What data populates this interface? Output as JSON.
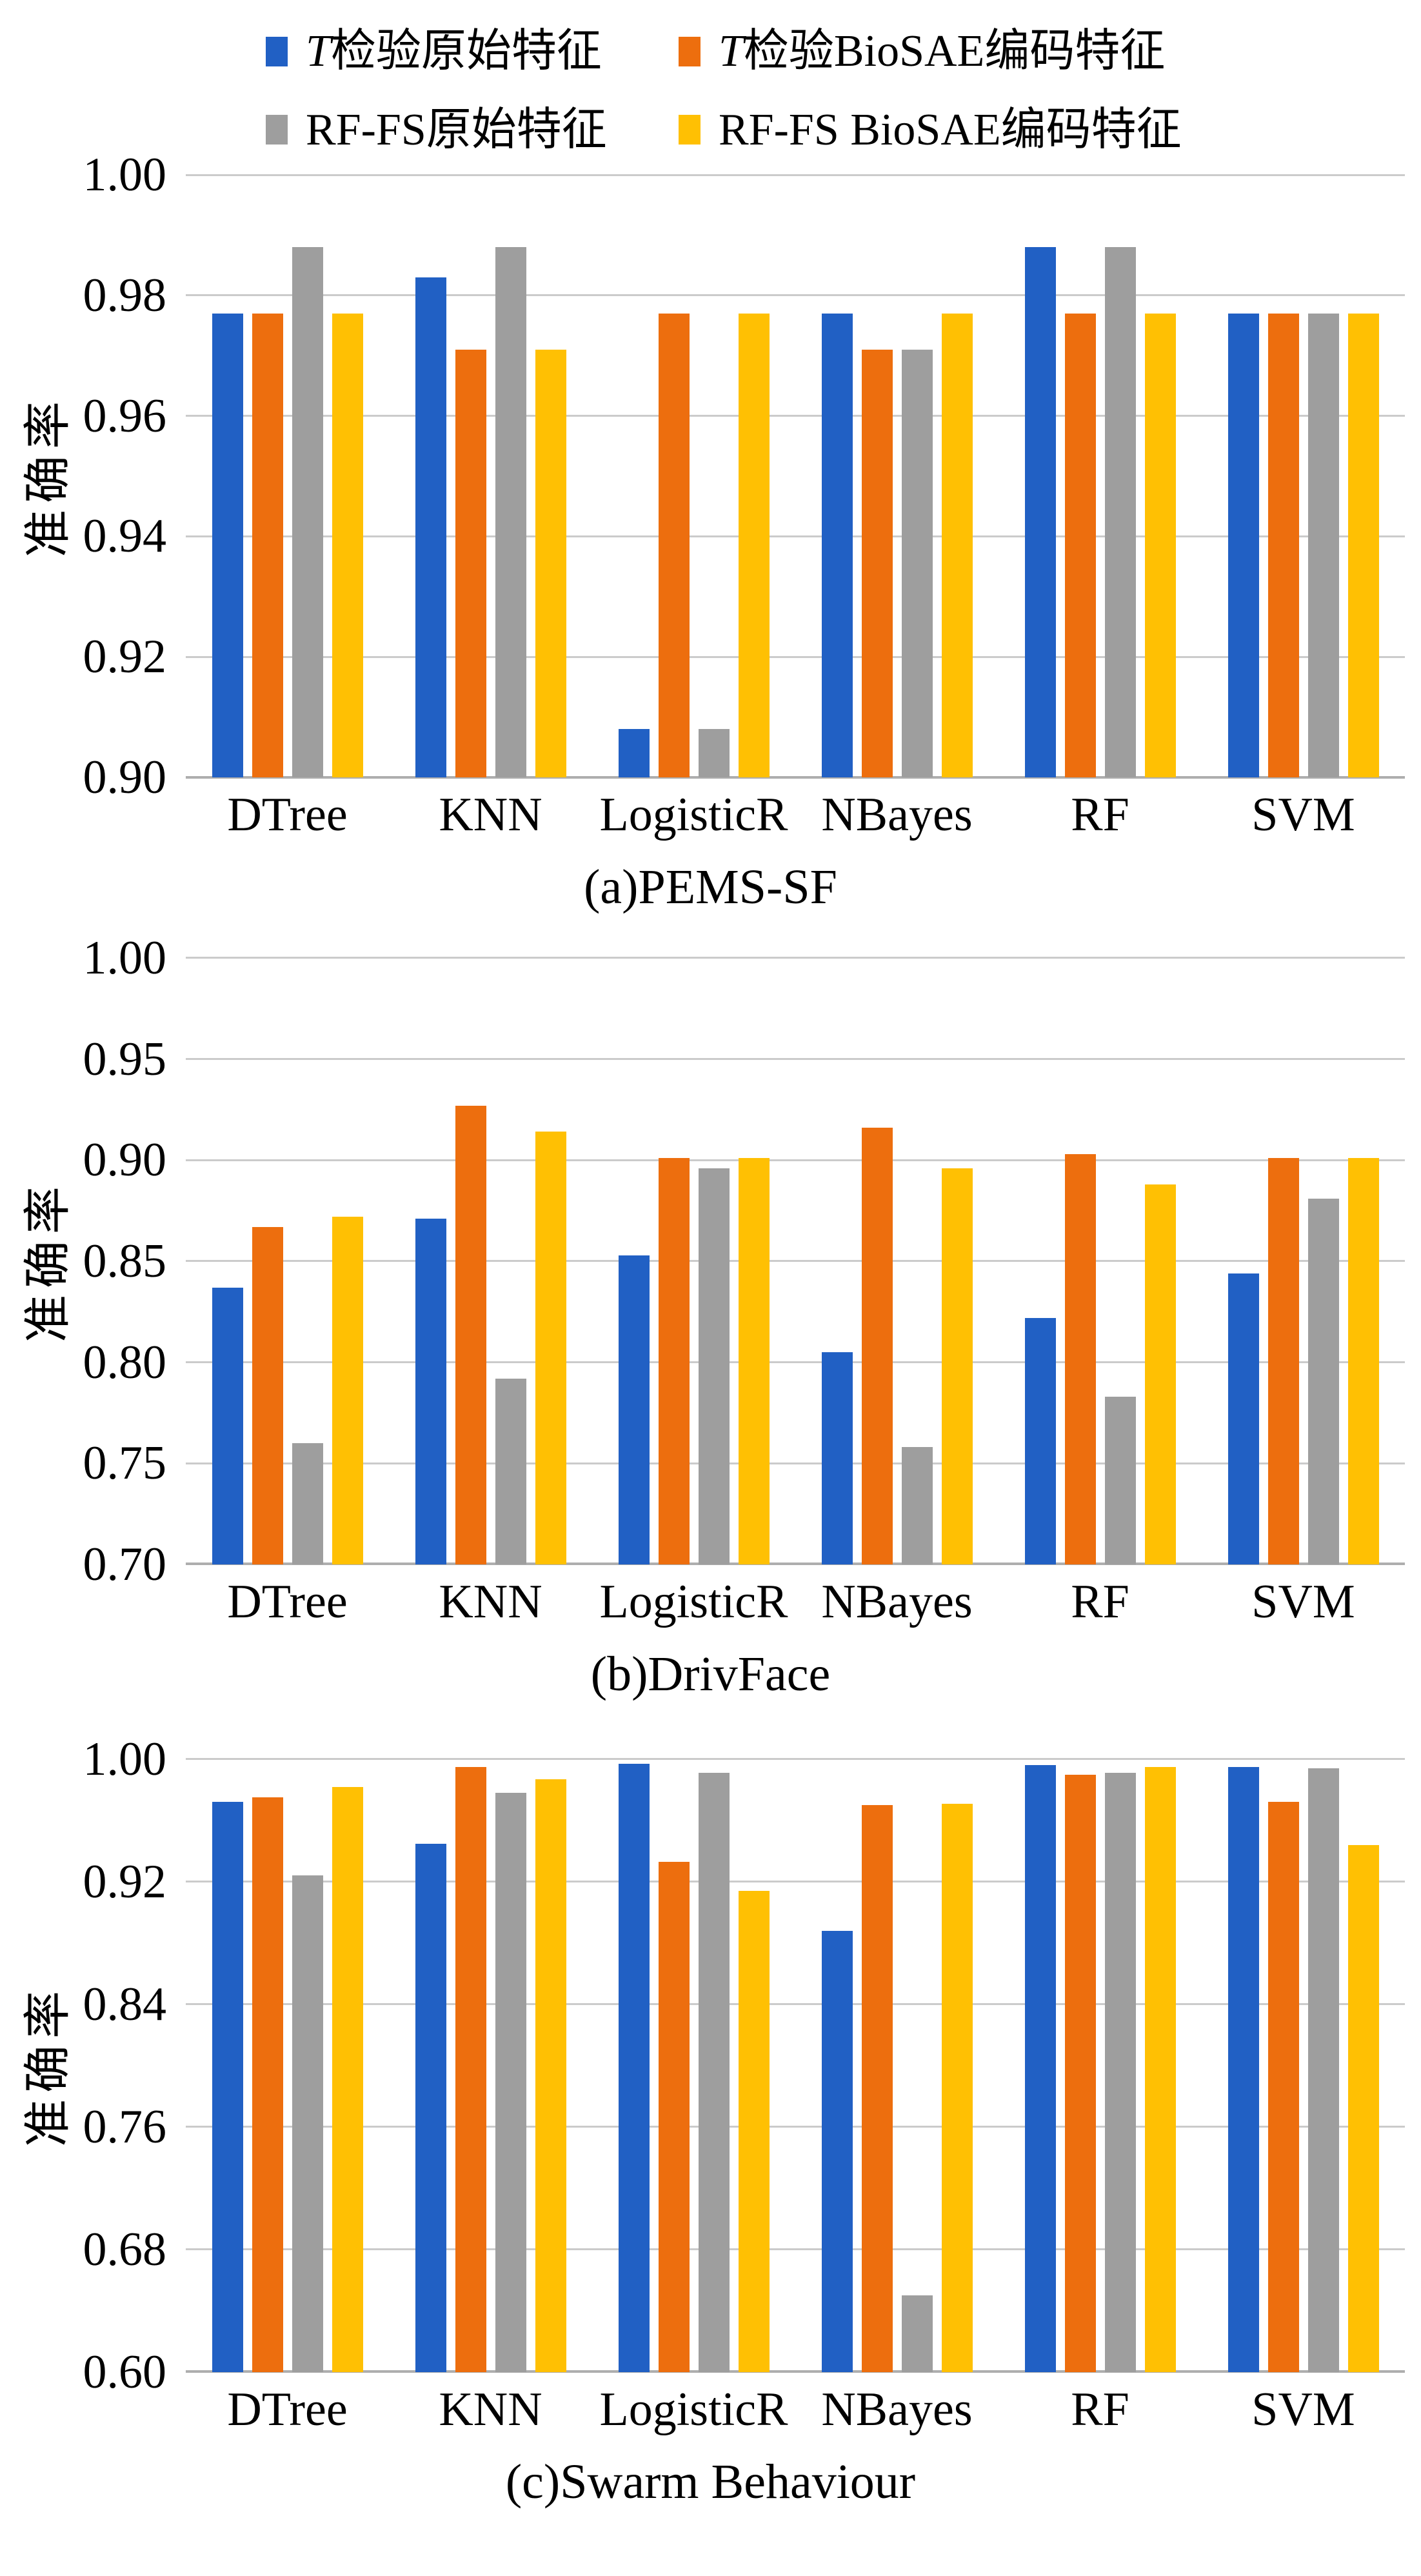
{
  "legend": {
    "items": [
      {
        "prefix": "T",
        "label": "检验原始特征",
        "color": "#2160C4"
      },
      {
        "prefix": "T",
        "label": "检验BioSAE编码特征",
        "color": "#ED6E0E"
      },
      {
        "prefix": "",
        "label": "RF-FS原始特征",
        "color": "#9E9E9E"
      },
      {
        "prefix": "",
        "label": "RF-FS BioSAE编码特征",
        "color": "#FFC003"
      }
    ]
  },
  "chart_data": [
    {
      "type": "bar",
      "title": "(a)PEMS-SF",
      "ylabel": "准确率",
      "xlabel": "",
      "grid": true,
      "legend_position": "top-shared",
      "categories": [
        "DTree",
        "KNN",
        "LogisticR",
        "NBayes",
        "RF",
        "SVM"
      ],
      "ylim": [
        0.9,
        1.0
      ],
      "yticks": [
        {
          "value": 0.9,
          "label": "0.90"
        },
        {
          "value": 0.92,
          "label": "0.92"
        },
        {
          "value": 0.94,
          "label": "0.94"
        },
        {
          "value": 0.96,
          "label": "0.96"
        },
        {
          "value": 0.98,
          "label": "0.98"
        },
        {
          "value": 1.0,
          "label": "1.00"
        }
      ],
      "series": [
        {
          "name": "T检验原始特征",
          "color": "#2160C4",
          "values": [
            0.977,
            0.983,
            0.908,
            0.977,
            0.988,
            0.977
          ]
        },
        {
          "name": "T检验BioSAE编码特征",
          "color": "#ED6E0E",
          "values": [
            0.977,
            0.971,
            0.977,
            0.971,
            0.977,
            0.977
          ]
        },
        {
          "name": "RF-FS原始特征",
          "color": "#9E9E9E",
          "values": [
            0.988,
            0.988,
            0.908,
            0.971,
            0.988,
            0.977
          ]
        },
        {
          "name": "RF-FS BioSAE编码特征",
          "color": "#FFC003",
          "values": [
            0.977,
            0.971,
            0.977,
            0.977,
            0.977,
            0.977
          ]
        }
      ]
    },
    {
      "type": "bar",
      "title": "(b)DrivFace",
      "ylabel": "准确率",
      "xlabel": "",
      "grid": true,
      "legend_position": "top-shared",
      "categories": [
        "DTree",
        "KNN",
        "LogisticR",
        "NBayes",
        "RF",
        "SVM"
      ],
      "ylim": [
        0.7,
        1.0
      ],
      "yticks": [
        {
          "value": 0.7,
          "label": "0.70"
        },
        {
          "value": 0.75,
          "label": "0.75"
        },
        {
          "value": 0.8,
          "label": "0.80"
        },
        {
          "value": 0.85,
          "label": "0.85"
        },
        {
          "value": 0.9,
          "label": "0.90"
        },
        {
          "value": 0.95,
          "label": "0.95"
        },
        {
          "value": 1.0,
          "label": "1.00"
        }
      ],
      "series": [
        {
          "name": "T检验原始特征",
          "color": "#2160C4",
          "values": [
            0.837,
            0.871,
            0.853,
            0.805,
            0.822,
            0.844
          ]
        },
        {
          "name": "T检验BioSAE编码特征",
          "color": "#ED6E0E",
          "values": [
            0.867,
            0.927,
            0.901,
            0.916,
            0.903,
            0.901
          ]
        },
        {
          "name": "RF-FS原始特征",
          "color": "#9E9E9E",
          "values": [
            0.76,
            0.792,
            0.896,
            0.758,
            0.783,
            0.881
          ]
        },
        {
          "name": "RF-FS BioSAE编码特征",
          "color": "#FFC003",
          "values": [
            0.872,
            0.914,
            0.901,
            0.896,
            0.888,
            0.901
          ]
        }
      ]
    },
    {
      "type": "bar",
      "title": "(c)Swarm Behaviour",
      "ylabel": "准确率",
      "xlabel": "",
      "grid": true,
      "legend_position": "top-shared",
      "categories": [
        "DTree",
        "KNN",
        "LogisticR",
        "NBayes",
        "RF",
        "SVM"
      ],
      "ylim": [
        0.6,
        1.0
      ],
      "yticks": [
        {
          "value": 0.6,
          "label": "0.60"
        },
        {
          "value": 0.68,
          "label": "0.68"
        },
        {
          "value": 0.76,
          "label": "0.76"
        },
        {
          "value": 0.84,
          "label": "0.84"
        },
        {
          "value": 0.92,
          "label": "0.92"
        },
        {
          "value": 1.0,
          "label": "1.00"
        }
      ],
      "series": [
        {
          "name": "T检验原始特征",
          "color": "#2160C4",
          "values": [
            0.972,
            0.945,
            0.997,
            0.888,
            0.996,
            0.995
          ]
        },
        {
          "name": "T检验BioSAE编码特征",
          "color": "#ED6E0E",
          "values": [
            0.975,
            0.995,
            0.933,
            0.97,
            0.99,
            0.972
          ]
        },
        {
          "name": "RF-FS原始特征",
          "color": "#9E9E9E",
          "values": [
            0.924,
            0.978,
            0.991,
            0.65,
            0.991,
            0.994
          ]
        },
        {
          "name": "RF-FS BioSAE编码特征",
          "color": "#FFC003",
          "values": [
            0.982,
            0.987,
            0.914,
            0.971,
            0.995,
            0.944
          ]
        }
      ]
    }
  ]
}
